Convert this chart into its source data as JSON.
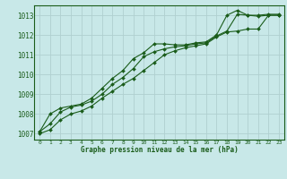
{
  "title": "Graphe pression niveau de la mer (hPa)",
  "bg_color": "#c8e8e8",
  "grid_color": "#b0d0d0",
  "line_color": "#1a5c1a",
  "xlim": [
    -0.5,
    23.5
  ],
  "ylim": [
    1006.7,
    1013.5
  ],
  "yticks": [
    1007,
    1008,
    1009,
    1010,
    1011,
    1012,
    1013
  ],
  "xticks": [
    0,
    1,
    2,
    3,
    4,
    5,
    6,
    7,
    8,
    9,
    10,
    11,
    12,
    13,
    14,
    15,
    16,
    17,
    18,
    19,
    20,
    21,
    22,
    23
  ],
  "series": [
    [
      1007.1,
      1008.0,
      1008.3,
      1008.4,
      1008.5,
      1008.8,
      1009.3,
      1009.8,
      1010.2,
      1010.8,
      1011.1,
      1011.55,
      1011.55,
      1011.5,
      1011.5,
      1011.6,
      1011.65,
      1012.0,
      1013.0,
      1013.25,
      1013.0,
      1013.0,
      1013.05,
      1013.05
    ],
    [
      1007.1,
      1007.5,
      1008.1,
      1008.35,
      1008.45,
      1008.65,
      1009.0,
      1009.5,
      1009.85,
      1010.3,
      1010.9,
      1011.15,
      1011.3,
      1011.4,
      1011.45,
      1011.55,
      1011.6,
      1011.95,
      1012.2,
      1013.05,
      1013.0,
      1012.95,
      1013.0,
      1013.0
    ],
    [
      1007.0,
      1007.2,
      1007.7,
      1008.0,
      1008.15,
      1008.4,
      1008.8,
      1009.15,
      1009.5,
      1009.8,
      1010.2,
      1010.6,
      1011.0,
      1011.2,
      1011.35,
      1011.45,
      1011.55,
      1011.9,
      1012.15,
      1012.2,
      1012.3,
      1012.3,
      1013.0,
      1013.0
    ]
  ]
}
